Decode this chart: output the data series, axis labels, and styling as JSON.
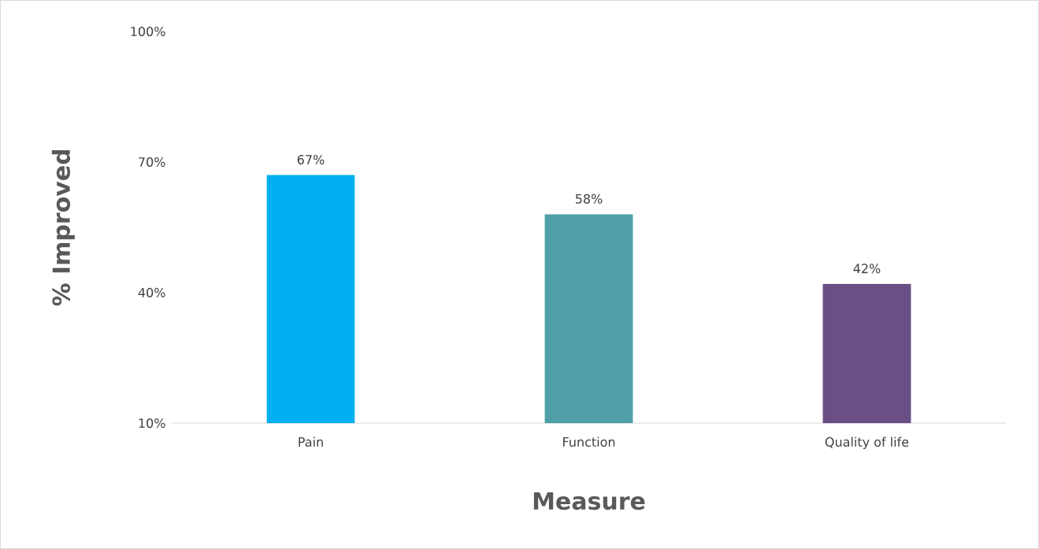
{
  "chart_data": {
    "type": "bar",
    "xlabel": "Measure",
    "ylabel": "% Improved",
    "categories": [
      "Pain",
      "Function",
      "Quality of life"
    ],
    "values": [
      67,
      58,
      42
    ],
    "colors": [
      "#00b0f0",
      "#4f9fa6",
      "#6a4f85"
    ],
    "value_labels": [
      "67%",
      "58%",
      "42%"
    ],
    "ylim": [
      10,
      100
    ],
    "yticks": [
      {
        "value": 10,
        "label": "10%"
      },
      {
        "value": 40,
        "label": "40%"
      },
      {
        "value": 70,
        "label": "70%"
      },
      {
        "value": 100,
        "label": "100%"
      }
    ]
  }
}
